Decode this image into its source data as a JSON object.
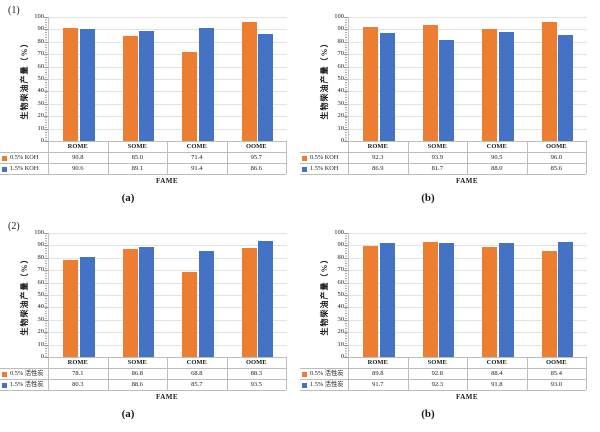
{
  "page": {
    "background": "#ffffff"
  },
  "colors": {
    "series1": "#ED7D31",
    "series2": "#4472C4",
    "gridline": "#e3e3e3",
    "table_border": "#bdbdbd",
    "text": "#1a1a1a"
  },
  "chart_data": [
    {
      "type": "bar",
      "panel_label": "(1)",
      "caption": "(a)",
      "ylabel": "生物柴油产量（%）",
      "xlabel": "FAME",
      "ylim": [
        0,
        100
      ],
      "ytick_step": 10,
      "grid": true,
      "legend_position": "table-left",
      "categories": [
        "ROME",
        "SOME",
        "COME",
        "OOME"
      ],
      "series": [
        {
          "name": "0.5% KOH",
          "color": "#ED7D31",
          "values": [
            90.8,
            85.0,
            71.4,
            95.7
          ]
        },
        {
          "name": "1.5% KOH",
          "color": "#4472C4",
          "values": [
            90.6,
            89.1,
            91.4,
            86.6
          ]
        }
      ]
    },
    {
      "type": "bar",
      "panel_label": "",
      "caption": "(b)",
      "ylabel": "生物柴油产量（%）",
      "xlabel": "FAME",
      "ylim": [
        0,
        100
      ],
      "ytick_step": 10,
      "grid": true,
      "legend_position": "table-left",
      "categories": [
        "ROME",
        "SOME",
        "COME",
        "OOME"
      ],
      "series": [
        {
          "name": "0.5% KOH",
          "color": "#ED7D31",
          "values": [
            92.3,
            93.9,
            90.5,
            96.0
          ]
        },
        {
          "name": "1.5% KOH",
          "color": "#4472C4",
          "values": [
            86.9,
            81.7,
            88.0,
            85.6
          ]
        }
      ]
    },
    {
      "type": "bar",
      "panel_label": "(2)",
      "caption": "(a)",
      "ylabel": "生物柴油产量（%）",
      "xlabel": "FAME",
      "ylim": [
        0,
        100
      ],
      "ytick_step": 10,
      "grid": true,
      "legend_position": "table-left",
      "categories": [
        "ROME",
        "SOME",
        "COME",
        "OOME"
      ],
      "series": [
        {
          "name": "0.5% 活性炭",
          "color": "#ED7D31",
          "values": [
            78.1,
            86.8,
            68.8,
            88.3
          ]
        },
        {
          "name": "1.5% 活性炭",
          "color": "#4472C4",
          "values": [
            80.3,
            88.6,
            85.7,
            93.5
          ]
        }
      ]
    },
    {
      "type": "bar",
      "panel_label": "",
      "caption": "(b)",
      "ylabel": "生物柴油产量（%）",
      "xlabel": "FAME",
      "ylim": [
        0,
        100
      ],
      "ytick_step": 10,
      "grid": true,
      "legend_position": "table-left",
      "categories": [
        "ROME",
        "SOME",
        "COME",
        "OOME"
      ],
      "series": [
        {
          "name": "0.5% 活性炭",
          "color": "#ED7D31",
          "values": [
            89.8,
            92.8,
            88.4,
            85.4
          ]
        },
        {
          "name": "1.5% 活性炭",
          "color": "#4472C4",
          "values": [
            91.7,
            92.3,
            91.8,
            93.0
          ]
        }
      ]
    }
  ]
}
